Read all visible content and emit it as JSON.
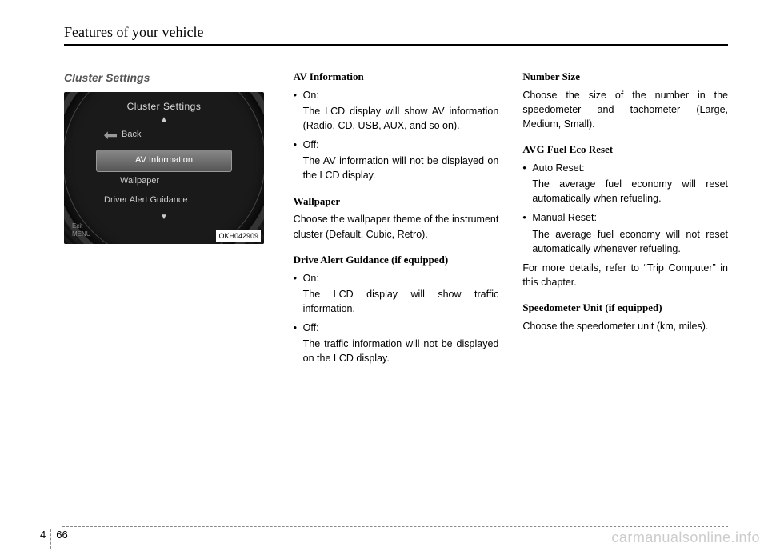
{
  "header": {
    "title": "Features of your vehicle"
  },
  "col1": {
    "heading": "Cluster Settings",
    "cluster": {
      "title": "Cluster Settings",
      "back": "Back",
      "selected": "AV Information",
      "item2": "Wallpaper",
      "item3": "Driver Alert Guidance",
      "exit": "Exit",
      "menu": "MENU",
      "code": "OKH042909"
    }
  },
  "col2": {
    "s1": {
      "h": "AV Information",
      "b1": "On:",
      "b1d": "The LCD display will show AV information (Radio, CD, USB, AUX, and so on).",
      "b2": "Off:",
      "b2d": "The AV information will not be displayed on the LCD display."
    },
    "s2": {
      "h": "Wallpaper",
      "p": "Choose the wallpaper theme of the instrument cluster (Default, Cubic, Retro)."
    },
    "s3": {
      "h": "Drive Alert Guidance (if equipped)",
      "b1": "On:",
      "b1d": "The LCD display will show traffic information.",
      "b2": "Off:",
      "b2d": "The traffic information will not be displayed on the LCD display."
    }
  },
  "col3": {
    "s1": {
      "h": "Number Size",
      "p": "Choose the size of the number in the speedometer and tachometer (Large, Medium, Small)."
    },
    "s2": {
      "h": "AVG Fuel Eco Reset",
      "b1": "Auto Reset:",
      "b1d": "The average fuel economy will reset automatically when refueling.",
      "b2": "Manual Reset:",
      "b2d": "The average fuel economy will not reset automatically whenever refueling.",
      "note": "For more details, refer to “Trip Computer” in this chapter."
    },
    "s3": {
      "h": "Speedometer Unit (if equipped)",
      "p": "Choose the speedometer unit (km, miles)."
    }
  },
  "footer": {
    "chapter": "4",
    "page": "66"
  },
  "watermark": "carmanualsonline.info"
}
